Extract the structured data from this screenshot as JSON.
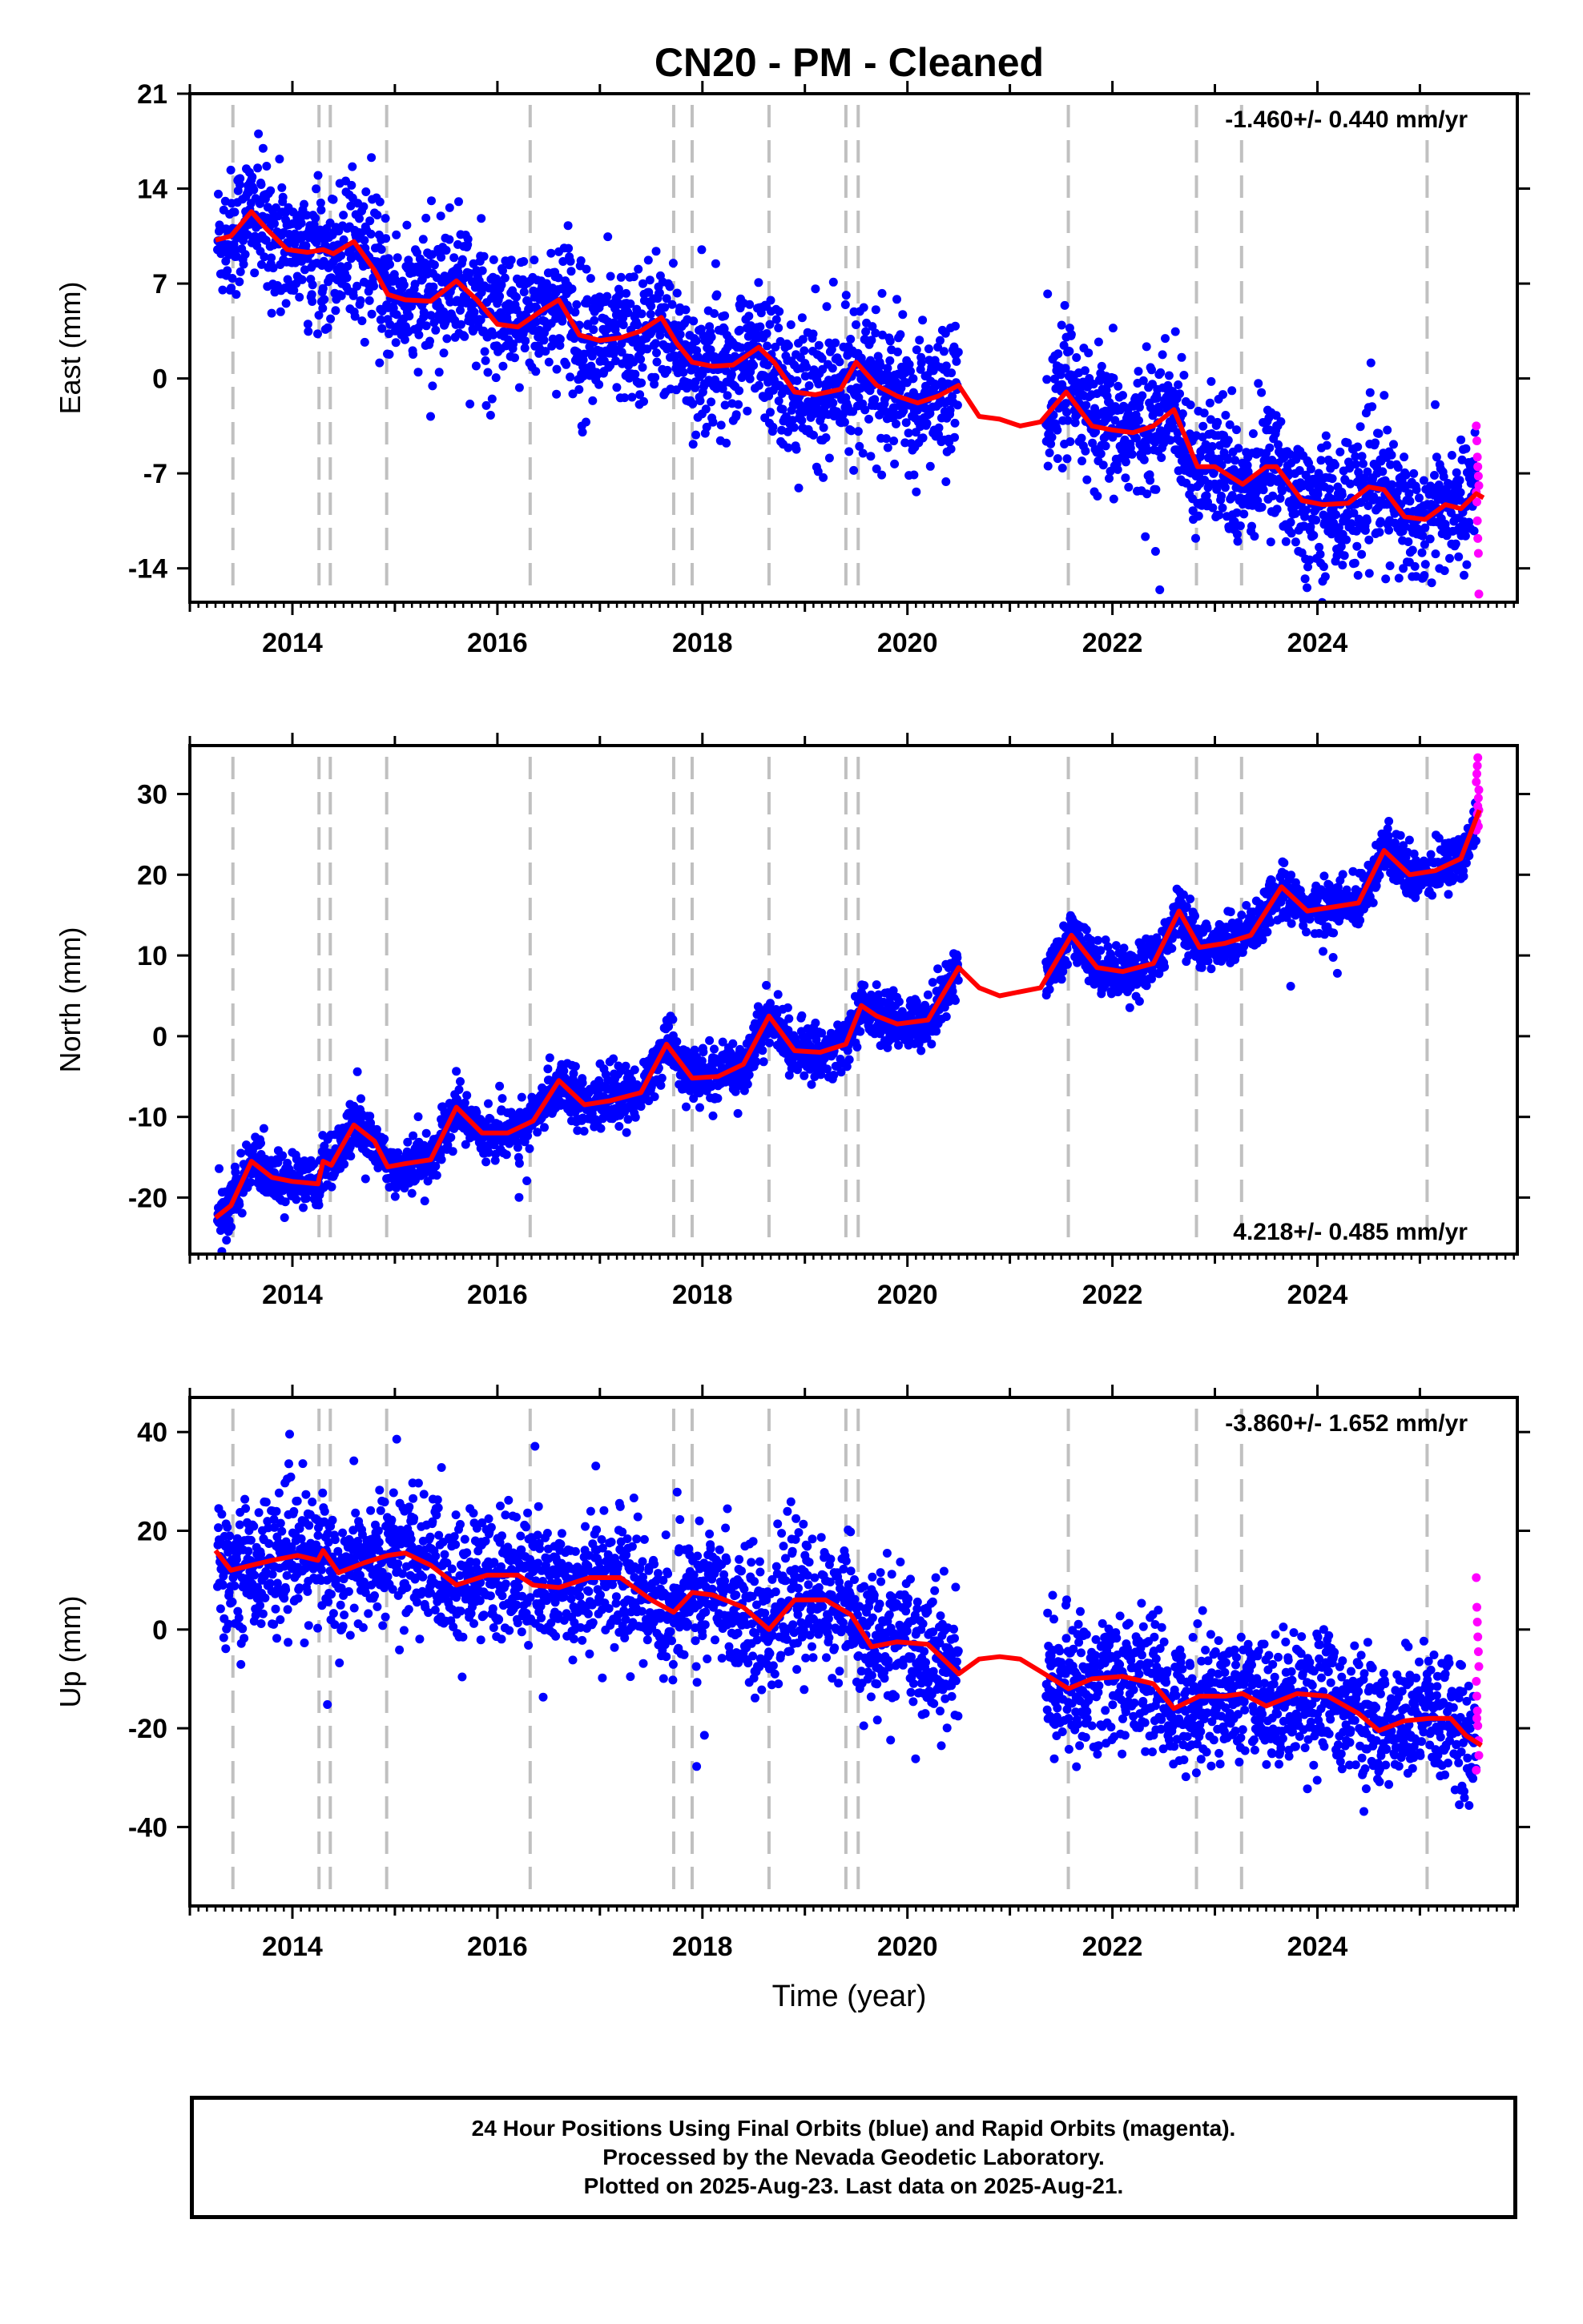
{
  "title": "CN20  - PM - Cleaned",
  "xlabel": "Time (year)",
  "colors": {
    "final": "#0000ff",
    "rapid": "#ff00ff",
    "model": "#ff0000",
    "events": "#c0c0c0",
    "axis": "#000000"
  },
  "footer": {
    "line1": "24 Hour Positions Using Final Orbits (blue) and Rapid Orbits (magenta).",
    "line2": "Processed by the Nevada Geodetic Laboratory.",
    "line3": "Plotted on 2025-Aug-23. Last data on 2025-Aug-21."
  },
  "chart_data": {
    "type": "scatter",
    "xlim": [
      2013.0,
      2025.95
    ],
    "xticks": [
      2014,
      2016,
      2018,
      2020,
      2022,
      2024
    ],
    "event_lines": [
      2013.42,
      2014.26,
      2014.37,
      2014.92,
      2016.32,
      2017.72,
      2017.9,
      2018.65,
      2019.4,
      2019.52,
      2021.57,
      2022.82,
      2023.26,
      2025.07
    ],
    "data_gaps": [
      [
        2020.5,
        2021.35
      ]
    ],
    "rapid_start": 2025.55,
    "panels": [
      {
        "name": "East",
        "ylabel": "East (mm)",
        "ylim": [
          -16.5,
          21.0
        ],
        "yticks": [
          -14,
          -7,
          0,
          7,
          14,
          21
        ],
        "rate_text": "-1.460+/- 0.440 mm/yr",
        "rate_position": "top-right",
        "scatter": 2.4,
        "rapid_values": [
          -3.5,
          -4.6,
          -5.8,
          -6.5,
          -7.2,
          -7.9,
          -8.4,
          -9.1,
          -10.5,
          -11.8,
          -12.9,
          -15.9
        ],
        "model": {
          "x": [
            2013.25,
            2013.4,
            2013.6,
            2013.75,
            2013.95,
            2014.15,
            2014.3,
            2014.4,
            2014.6,
            2014.8,
            2014.93,
            2015.1,
            2015.35,
            2015.6,
            2015.8,
            2016.0,
            2016.2,
            2016.45,
            2016.6,
            2016.8,
            2017.0,
            2017.2,
            2017.4,
            2017.6,
            2017.75,
            2017.9,
            2018.1,
            2018.3,
            2018.55,
            2018.7,
            2018.9,
            2019.1,
            2019.35,
            2019.5,
            2019.7,
            2019.9,
            2020.1,
            2020.3,
            2020.5,
            2020.7,
            2020.9,
            2021.1,
            2021.3,
            2021.55,
            2021.8,
            2022.0,
            2022.2,
            2022.4,
            2022.6,
            2022.83,
            2023.0,
            2023.27,
            2023.5,
            2023.6,
            2023.85,
            2024.05,
            2024.3,
            2024.5,
            2024.65,
            2024.85,
            2025.05,
            2025.25,
            2025.4,
            2025.55,
            2025.62
          ],
          "y": [
            10.2,
            10.5,
            12.3,
            11.0,
            9.5,
            9.3,
            9.5,
            9.2,
            10.1,
            8.0,
            6.2,
            5.8,
            5.7,
            7.2,
            5.8,
            4.0,
            3.8,
            5.1,
            5.8,
            3.2,
            2.8,
            3.0,
            3.5,
            4.5,
            2.6,
            1.2,
            0.9,
            1.0,
            2.3,
            1.2,
            -1.0,
            -1.2,
            -0.8,
            1.2,
            -0.5,
            -1.3,
            -1.8,
            -1.3,
            -0.5,
            -2.8,
            -3.0,
            -3.5,
            -3.2,
            -1.0,
            -3.5,
            -3.8,
            -4.0,
            -3.5,
            -2.3,
            -6.5,
            -6.5,
            -7.8,
            -6.5,
            -6.5,
            -9.0,
            -9.3,
            -9.2,
            -8.0,
            -8.2,
            -10.2,
            -10.4,
            -9.3,
            -9.6,
            -8.5,
            -8.8
          ]
        }
      },
      {
        "name": "North",
        "ylabel": "North (mm)",
        "ylim": [
          -27.0,
          36.0
        ],
        "yticks": [
          -20,
          -10,
          0,
          10,
          20,
          30
        ],
        "rate_text": "4.218+/- 0.485 mm/yr",
        "rate_position": "bottom-right",
        "scatter": 1.6,
        "rapid_values": [
          25.5,
          26.5,
          27.5,
          28.5,
          29.5,
          30.5,
          31.5,
          32.5,
          33.5,
          34.5,
          26.0,
          28.0
        ],
        "model": {
          "x": [
            2013.25,
            2013.4,
            2013.6,
            2013.8,
            2014.0,
            2014.25,
            2014.3,
            2014.38,
            2014.6,
            2014.8,
            2014.93,
            2015.1,
            2015.35,
            2015.6,
            2015.85,
            2016.1,
            2016.35,
            2016.6,
            2016.85,
            2017.1,
            2017.4,
            2017.65,
            2017.9,
            2018.15,
            2018.4,
            2018.65,
            2018.9,
            2019.15,
            2019.4,
            2019.55,
            2019.7,
            2019.9,
            2020.2,
            2020.5,
            2020.7,
            2020.9,
            2021.1,
            2021.3,
            2021.6,
            2021.85,
            2022.1,
            2022.4,
            2022.65,
            2022.85,
            2023.1,
            2023.35,
            2023.65,
            2023.9,
            2024.15,
            2024.4,
            2024.65,
            2024.9,
            2025.15,
            2025.4,
            2025.58
          ],
          "y": [
            -22.5,
            -21.0,
            -15.5,
            -17.5,
            -18.0,
            -18.3,
            -15.5,
            -16.0,
            -11.0,
            -13.0,
            -16.2,
            -15.8,
            -15.3,
            -8.8,
            -12.0,
            -12.0,
            -10.5,
            -5.5,
            -8.5,
            -8.0,
            -7.0,
            -1.0,
            -5.2,
            -5.0,
            -3.5,
            2.5,
            -1.8,
            -2.0,
            -1.0,
            3.8,
            2.5,
            1.5,
            2.0,
            8.5,
            6.0,
            5.0,
            5.5,
            6.0,
            12.5,
            8.5,
            8.0,
            9.0,
            15.5,
            11.0,
            11.5,
            12.5,
            18.5,
            15.5,
            16.0,
            16.5,
            23.0,
            20.0,
            20.5,
            22.0,
            28.0
          ]
        }
      },
      {
        "name": "Up",
        "ylabel": "Up (mm)",
        "ylim": [
          -56.0,
          47.0
        ],
        "yticks": [
          -40,
          -20,
          0,
          20,
          40
        ],
        "rate_text": "-3.860+/- 1.652 mm/yr",
        "rate_position": "top-right",
        "scatter": 6.5,
        "rapid_values": [
          10.5,
          4.5,
          1.5,
          -1.5,
          -4.5,
          -7.5,
          -10.5,
          -13.5,
          -16.5,
          -19.5,
          -22.5,
          -25.5,
          -28.5,
          -18.0
        ],
        "model": {
          "x": [
            2013.25,
            2013.4,
            2013.6,
            2013.8,
            2014.05,
            2014.25,
            2014.3,
            2014.45,
            2014.7,
            2014.93,
            2015.1,
            2015.35,
            2015.6,
            2015.9,
            2016.2,
            2016.35,
            2016.6,
            2016.9,
            2017.2,
            2017.5,
            2017.72,
            2017.9,
            2018.1,
            2018.4,
            2018.65,
            2018.9,
            2019.2,
            2019.45,
            2019.65,
            2019.9,
            2020.2,
            2020.5,
            2020.7,
            2020.9,
            2021.1,
            2021.3,
            2021.57,
            2021.8,
            2022.1,
            2022.4,
            2022.6,
            2022.85,
            2023.1,
            2023.27,
            2023.5,
            2023.8,
            2024.1,
            2024.4,
            2024.6,
            2024.85,
            2025.1,
            2025.3,
            2025.45,
            2025.6
          ],
          "y": [
            16.0,
            12.0,
            13.0,
            14.0,
            15.0,
            14.0,
            16.0,
            11.5,
            13.5,
            15.0,
            15.5,
            13.0,
            9.0,
            11.0,
            11.0,
            9.0,
            8.5,
            10.5,
            10.5,
            6.0,
            3.5,
            7.5,
            7.0,
            4.5,
            0.0,
            6.0,
            6.0,
            3.0,
            -3.5,
            -2.5,
            -3.0,
            -9.0,
            -6.0,
            -5.5,
            -6.0,
            -8.5,
            -12.0,
            -10.0,
            -9.5,
            -11.0,
            -16.0,
            -13.5,
            -13.5,
            -13.0,
            -15.5,
            -13.0,
            -13.5,
            -17.0,
            -20.5,
            -18.5,
            -18.0,
            -18.0,
            -21.5,
            -23.5
          ]
        }
      }
    ]
  }
}
